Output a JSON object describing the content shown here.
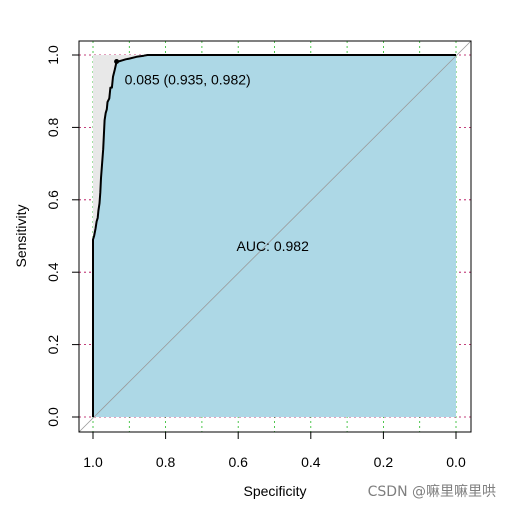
{
  "chart_data": {
    "type": "line",
    "xlabel": "Specificity",
    "ylabel": "Sensitivity",
    "xlim": [
      1.0,
      0.0
    ],
    "ylim": [
      0.0,
      1.0
    ],
    "x_ticks": [
      "1.0",
      "0.8",
      "0.6",
      "0.4",
      "0.2",
      "0.0"
    ],
    "y_ticks": [
      "0.0",
      "0.2",
      "0.4",
      "0.6",
      "0.8",
      "1.0"
    ],
    "grid": true,
    "series": [
      {
        "specificity": [
          1.0,
          1.0,
          0.997,
          0.993,
          0.99,
          0.987,
          0.985,
          0.982,
          0.98,
          0.978,
          0.975,
          0.972,
          0.97,
          0.968,
          0.965,
          0.962,
          0.96,
          0.955,
          0.952,
          0.948,
          0.945,
          0.94,
          0.935,
          0.93,
          0.92,
          0.91,
          0.9,
          0.88,
          0.86,
          0.85,
          0.84,
          0.0
        ],
        "sensitivity": [
          0.0,
          0.49,
          0.5,
          0.52,
          0.54,
          0.55,
          0.57,
          0.59,
          0.62,
          0.66,
          0.7,
          0.74,
          0.78,
          0.82,
          0.84,
          0.85,
          0.87,
          0.88,
          0.91,
          0.91,
          0.94,
          0.96,
          0.982,
          0.982,
          0.985,
          0.988,
          0.99,
          0.995,
          0.998,
          1.0,
          1.0,
          1.0
        ]
      }
    ],
    "auc_label": "AUC: 0.982",
    "auc_position": {
      "specificity": 0.5,
      "sensitivity": 0.47
    },
    "threshold_point": {
      "specificity": 0.935,
      "sensitivity": 0.982,
      "label": "0.085 (0.935, 0.982)"
    },
    "auc_fill_color": "#add8e6",
    "roc_shape_color": "#e8e8e8",
    "line_color": "#000000",
    "grid_x_color": "#22b822",
    "grid_y_color": "#b00050"
  },
  "watermark": "CSDN @嘛里嘛里哄"
}
